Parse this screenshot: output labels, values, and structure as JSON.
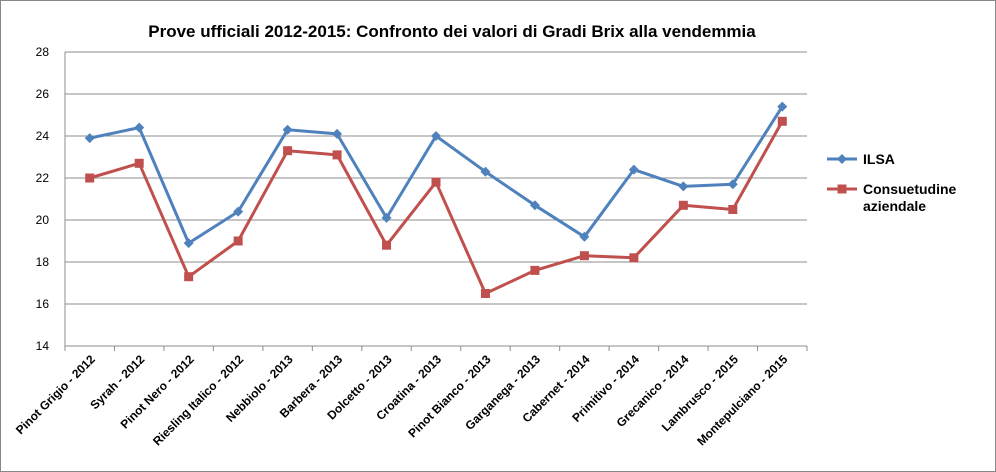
{
  "chart_data": {
    "type": "line",
    "title": "Prove ufficiali 2012-2015: Confronto dei valori di Gradi Brix alla vendemmia",
    "categories": [
      "Pinot Grigio - 2012",
      "Syrah - 2012",
      "Pinot Nero - 2012",
      "Riesling Italico - 2012",
      "Nebbiolo - 2013",
      "Barbera - 2013",
      "Dolcetto - 2013",
      "Croatina - 2013",
      "Pinot Bianco - 2013",
      "Garganega - 2013",
      "Cabernet - 2014",
      "Primitivo - 2014",
      "Grecanico - 2014",
      "Lambrusco - 2015",
      "Montepulciano - 2015"
    ],
    "series": [
      {
        "name": "ILSA",
        "color": "#4f81bd",
        "marker": "diamond",
        "values": [
          23.9,
          24.4,
          18.9,
          20.4,
          24.3,
          24.1,
          20.1,
          24.0,
          22.3,
          20.7,
          19.2,
          22.4,
          21.6,
          21.7,
          25.4
        ]
      },
      {
        "name": "Consuetudine aziendale",
        "legend_lines": [
          "Consuetudine",
          "aziendale"
        ],
        "color": "#c0504d",
        "marker": "square",
        "values": [
          22.0,
          22.7,
          17.3,
          19.0,
          23.3,
          23.1,
          18.8,
          21.8,
          16.5,
          17.6,
          18.3,
          18.2,
          20.7,
          20.5,
          24.7
        ]
      }
    ],
    "ylim": [
      14,
      28
    ],
    "yticks": [
      "14",
      "16",
      "18",
      "20",
      "22",
      "24",
      "26",
      "28"
    ],
    "grid": true,
    "legend_position": "right"
  }
}
